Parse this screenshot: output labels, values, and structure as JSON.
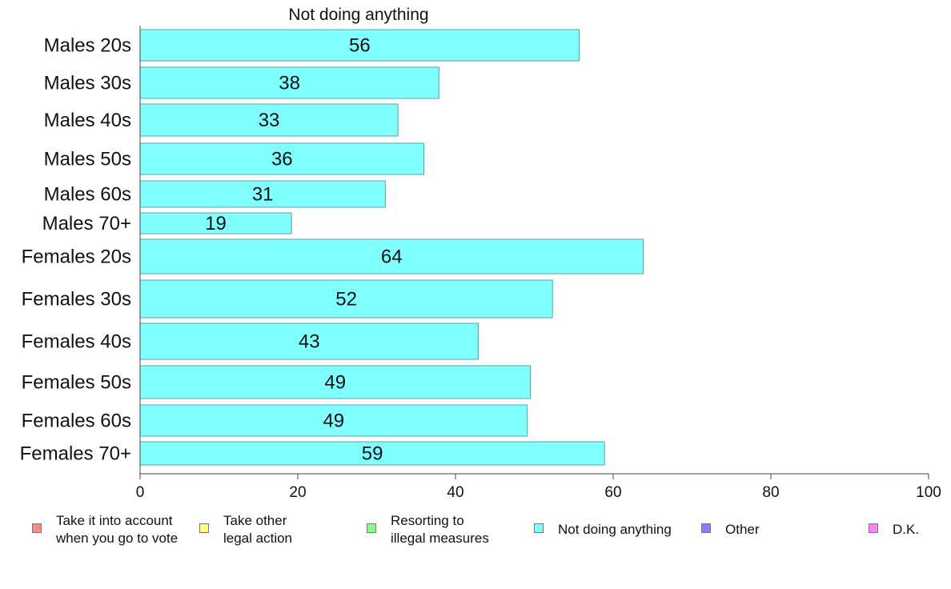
{
  "chart_data": {
    "type": "bar",
    "orientation": "horizontal",
    "title": "Not doing anything",
    "categories": [
      "Males 20s",
      "Males 30s",
      "Males 40s",
      "Males 50s",
      "Males 60s",
      "Males 70+",
      "Females 20s",
      "Females 30s",
      "Females 40s",
      "Females 50s",
      "Females 60s",
      "Females 70+"
    ],
    "values": [
      56,
      38,
      33,
      36,
      31,
      19,
      64,
      52,
      43,
      49,
      49,
      59
    ],
    "bar_values_exact": [
      55.7,
      37.9,
      32.7,
      36.0,
      31.1,
      19.2,
      63.8,
      52.3,
      42.9,
      49.5,
      49.1,
      58.9
    ],
    "xlim": [
      0,
      100
    ],
    "xticks": [
      0,
      20,
      40,
      60,
      80,
      100
    ],
    "bar_color": "#80ffff",
    "bar_stroke": "#5aa0a8",
    "legend_placement": "bottom",
    "legend": [
      {
        "label": "Take it into account\nwhen you go to vote",
        "color": "#ff8a8a"
      },
      {
        "label": "Take other\nlegal action",
        "color": "#ffff80"
      },
      {
        "label": "Resorting to\nillegal measures",
        "color": "#80ff80"
      },
      {
        "label": "Not doing anything",
        "color": "#80ffff"
      },
      {
        "label": "Other",
        "color": "#8080ff"
      },
      {
        "label": "D.K.",
        "color": "#ff80ff"
      }
    ]
  }
}
